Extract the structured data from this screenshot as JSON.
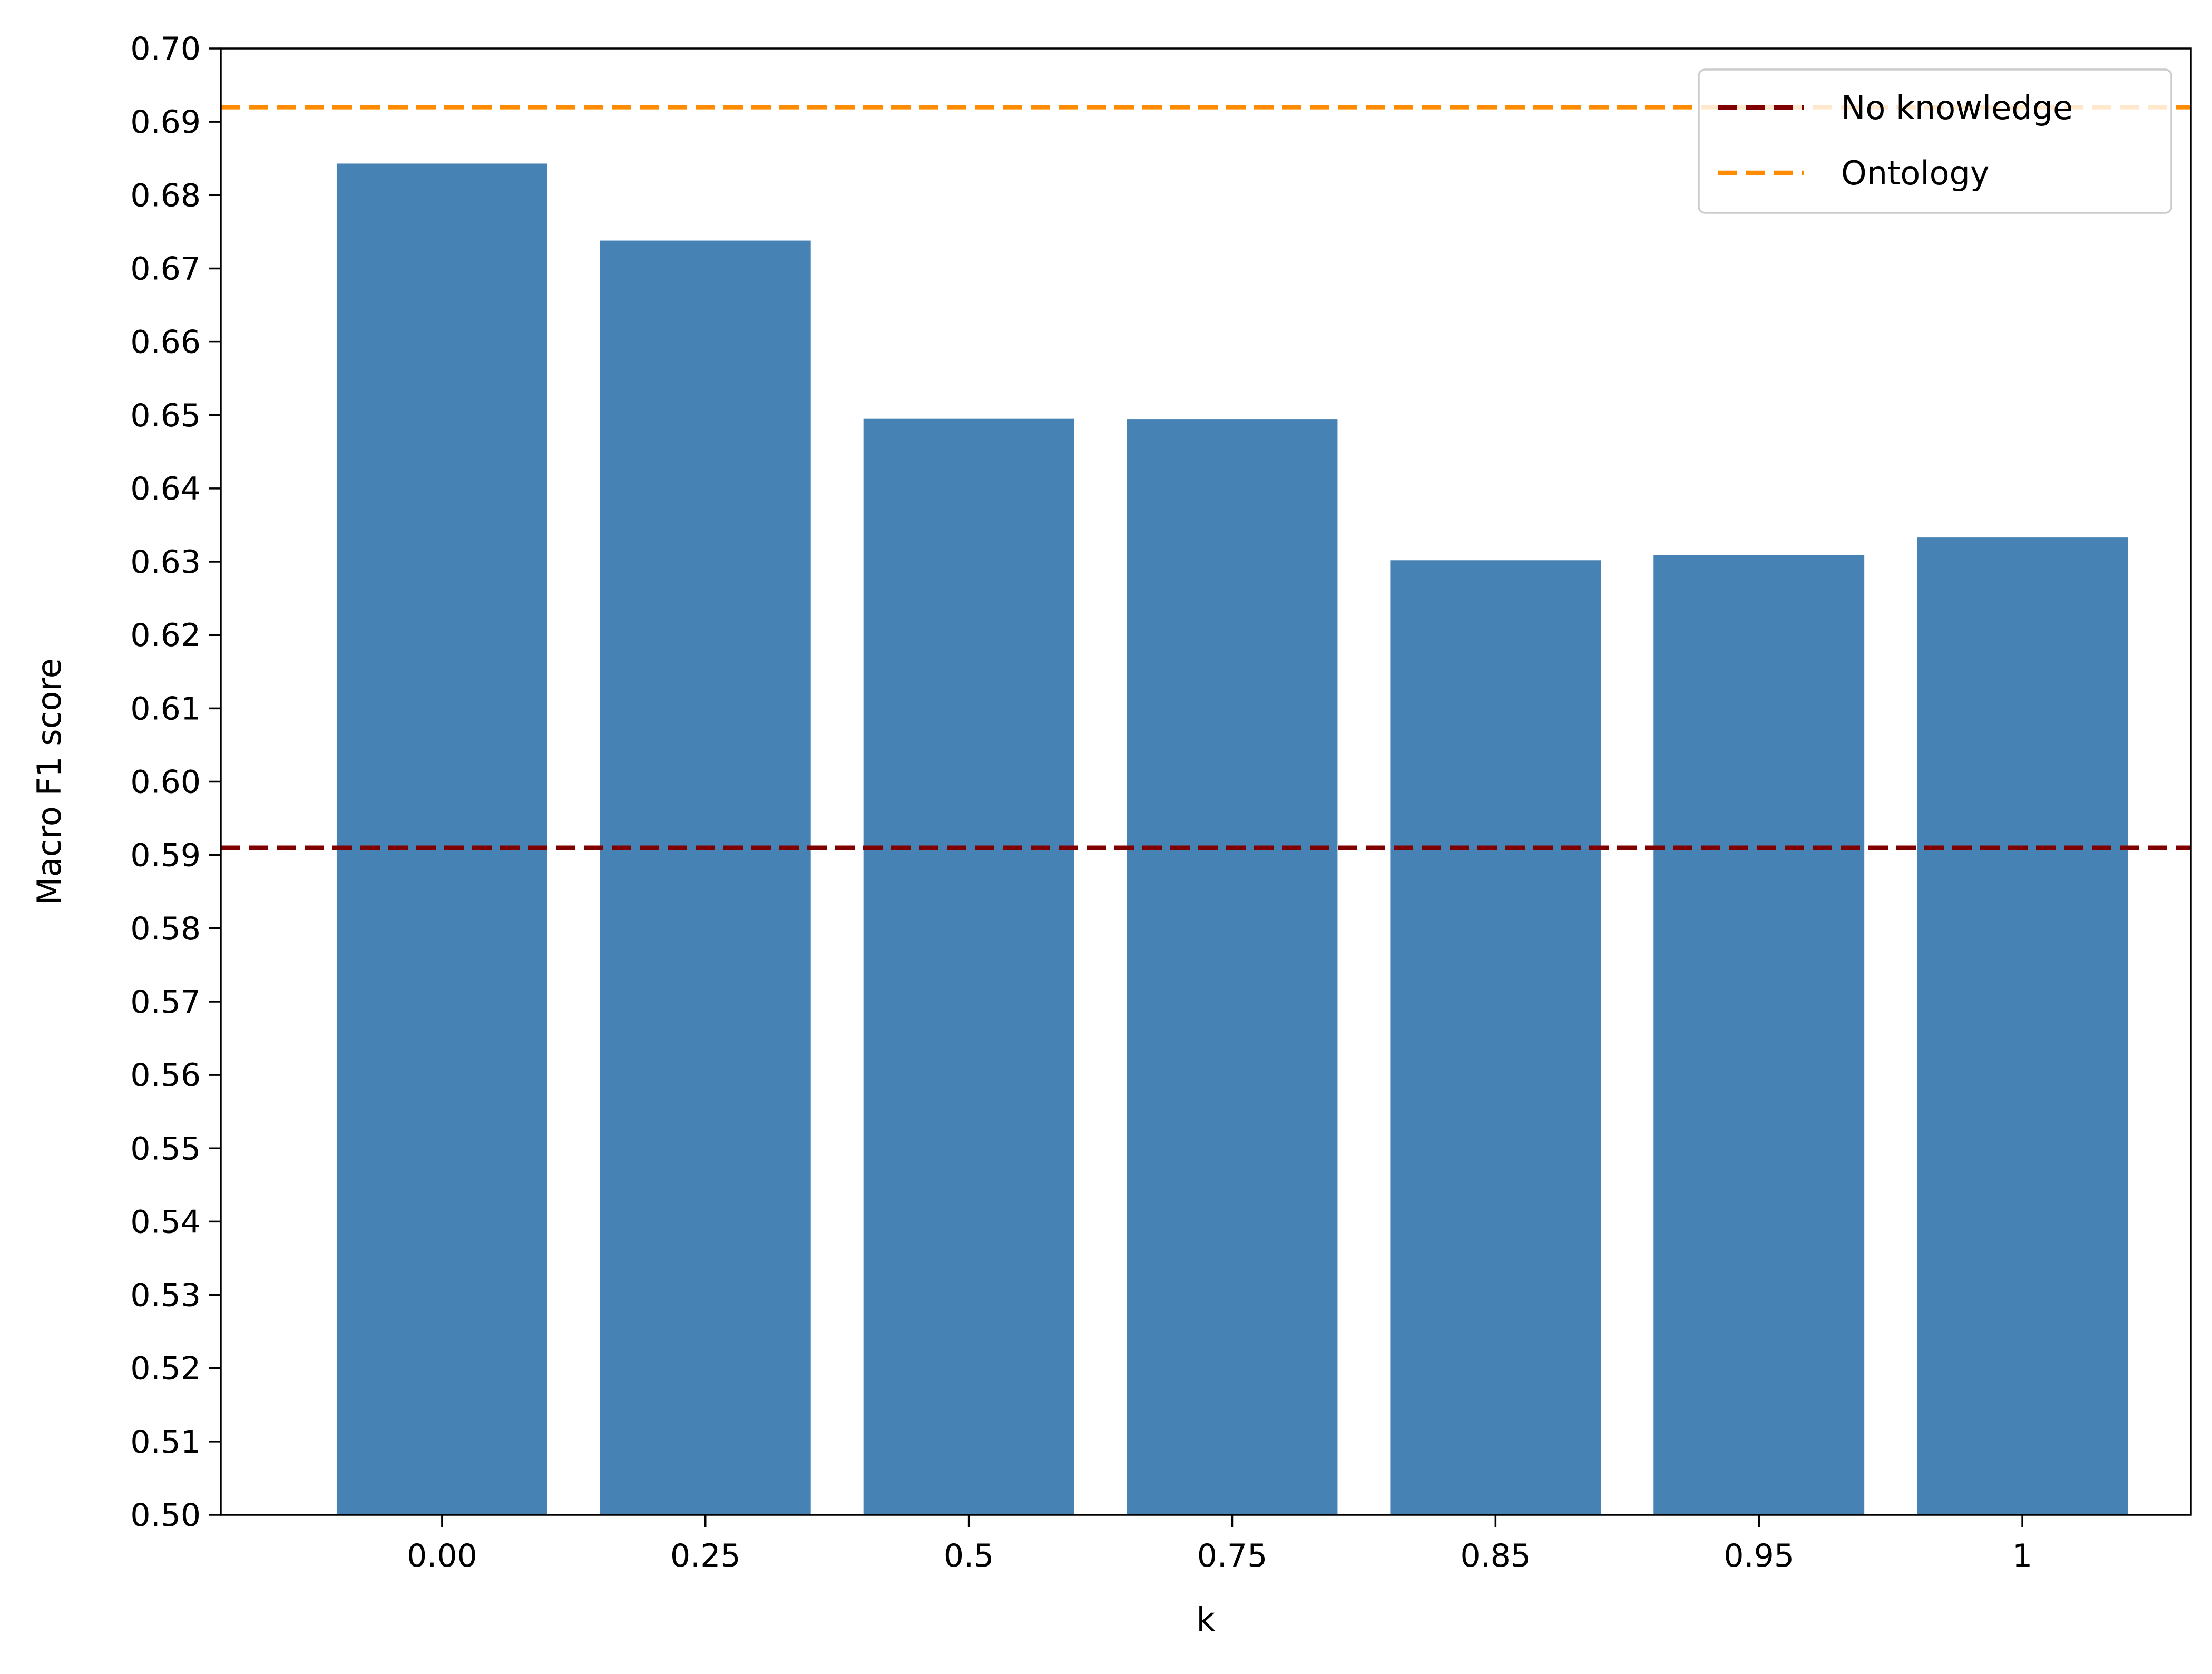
{
  "chart_data": {
    "type": "bar",
    "categories": [
      "0.00",
      "0.25",
      "0.5",
      "0.75",
      "0.85",
      "0.95",
      "1"
    ],
    "values": [
      0.6843,
      0.6738,
      0.6495,
      0.6494,
      0.6302,
      0.6309,
      0.6333
    ],
    "xlabel": "k",
    "ylabel": "Macro F1 score",
    "ylim": [
      0.5,
      0.7
    ],
    "yticks": [
      "0.50",
      "0.51",
      "0.52",
      "0.53",
      "0.54",
      "0.55",
      "0.56",
      "0.57",
      "0.58",
      "0.59",
      "0.60",
      "0.61",
      "0.62",
      "0.63",
      "0.64",
      "0.65",
      "0.66",
      "0.67",
      "0.68",
      "0.69",
      "0.70"
    ],
    "bar_color": "#4682b4",
    "reference_lines": [
      {
        "name": "No knowledge",
        "value": 0.591,
        "color": "#800000",
        "style": "dashed"
      },
      {
        "name": "Ontology",
        "value": 0.692,
        "color": "#ff8c00",
        "style": "dashed"
      }
    ],
    "legend_position": "top-right",
    "grid": false
  }
}
